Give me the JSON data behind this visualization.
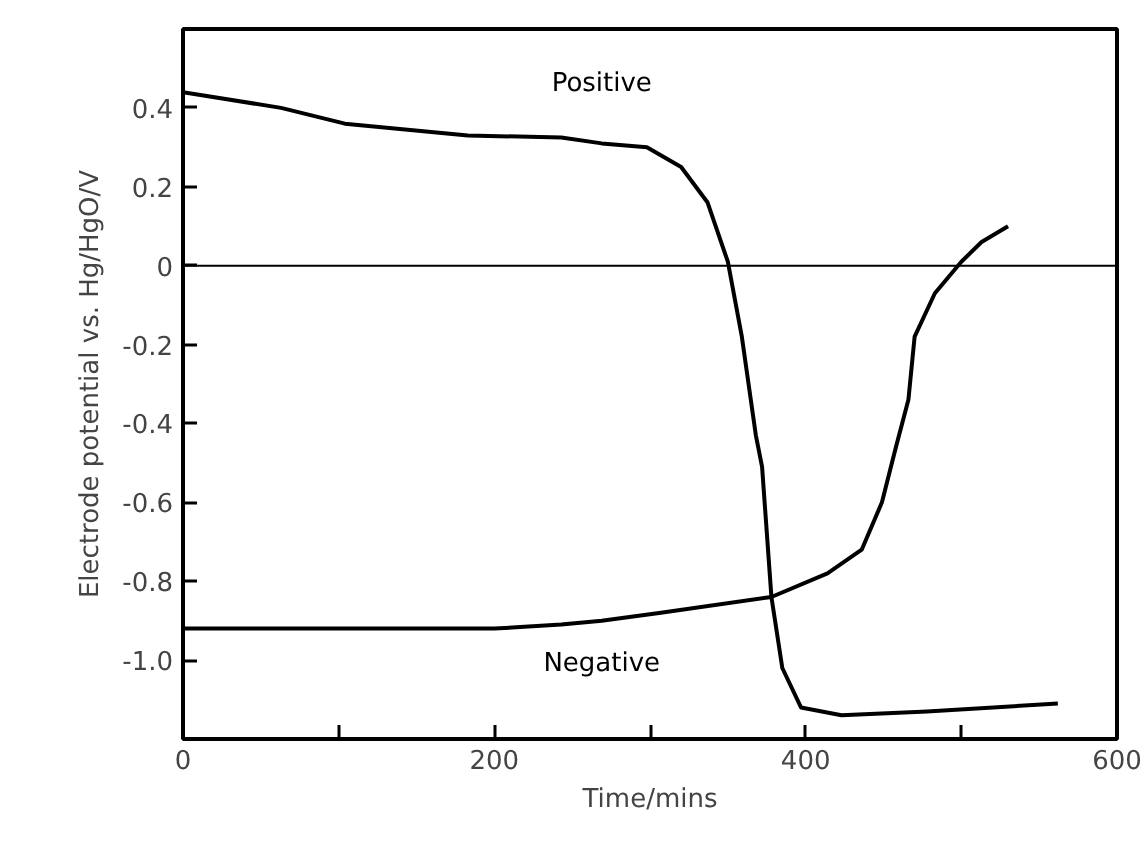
{
  "chart_data": {
    "type": "line",
    "xlabel": "Time/mins",
    "ylabel": "Electrode potential vs. Hg/HgO/V",
    "xlim": [
      0,
      600
    ],
    "ylim": [
      -1.2,
      0.6
    ],
    "xticks": [
      0,
      {
        "value": 100,
        "label": null
      },
      200,
      {
        "value": 300,
        "label": null
      },
      400,
      {
        "value": 500,
        "label": null
      },
      600
    ],
    "yticks": [
      {
        "value": -1.0,
        "label": "-1.0"
      },
      -0.8,
      -0.6,
      -0.4,
      -0.2,
      0,
      0.2,
      0.4
    ],
    "grid": false,
    "marker": "none",
    "line_style": "solid",
    "ref_lines": [
      {
        "axis": "y",
        "value": 0,
        "color": "#000000"
      }
    ],
    "series": [
      {
        "name": "Positive",
        "color": "#000000",
        "x": [
          0,
          63,
          104,
          183,
          243,
          269,
          298,
          320,
          337,
          350,
          359,
          368,
          372,
          378,
          385,
          397,
          423,
          478,
          562
        ],
        "values": [
          0.44,
          0.4,
          0.36,
          0.33,
          0.325,
          0.31,
          0.3,
          0.25,
          0.16,
          0.01,
          -0.18,
          -0.43,
          -0.51,
          -0.84,
          -1.02,
          -1.12,
          -1.14,
          -1.13,
          -1.11
        ]
      },
      {
        "name": "Negative",
        "color": "#000000",
        "x": [
          0,
          100,
          200,
          243,
          269,
          307,
          378,
          414,
          436,
          449,
          458,
          466,
          470,
          483,
          500,
          513,
          530
        ],
        "values": [
          -0.92,
          -0.92,
          -0.92,
          -0.91,
          -0.9,
          -0.88,
          -0.84,
          -0.78,
          -0.72,
          -0.6,
          -0.46,
          -0.34,
          -0.18,
          -0.07,
          0.01,
          0.06,
          0.1
        ]
      }
    ]
  }
}
